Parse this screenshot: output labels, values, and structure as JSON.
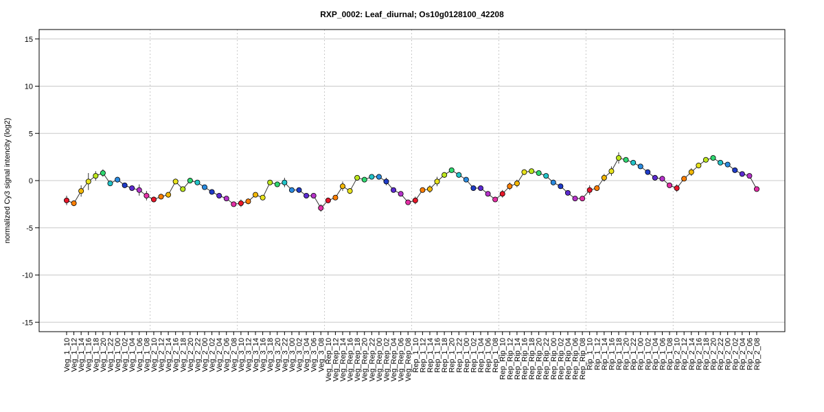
{
  "chart_data": {
    "type": "line",
    "title": "RXP_0002: Leaf_diurnal; Os10g0128100_42208",
    "xlabel": "",
    "ylabel": "normalized Cy3 signal intencity (log2)",
    "ylim": [
      -16,
      16
    ],
    "yticks": [
      -15,
      -10,
      -5,
      0,
      5,
      10,
      15
    ],
    "grid": true,
    "legend": "none",
    "categories": [
      "Veg_1_10",
      "Veg_1_12",
      "Veg_1_14",
      "Veg_1_16",
      "Veg_1_18",
      "Veg_1_20",
      "Veg_1_22",
      "Veg_1_00",
      "Veg_1_02",
      "Veg_1_04",
      "Veg_1_06",
      "Veg_1_08",
      "Veg_2_10",
      "Veg_2_12",
      "Veg_2_14",
      "Veg_2_16",
      "Veg_2_18",
      "Veg_2_20",
      "Veg_2_22",
      "Veg_2_00",
      "Veg_2_02",
      "Veg_2_04",
      "Veg_2_06",
      "Veg_2_08",
      "Veg_3_10",
      "Veg_3_12",
      "Veg_3_14",
      "Veg_3_16",
      "Veg_3_18",
      "Veg_3_20",
      "Veg_3_22",
      "Veg_3_00",
      "Veg_3_02",
      "Veg_3_04",
      "Veg_3_06",
      "Veg_3_08",
      "Veg_Rep_10",
      "Veg_Rep_12",
      "Veg_Rep_14",
      "Veg_Rep_16",
      "Veg_Rep_18",
      "Veg_Rep_20",
      "Veg_Rep_22",
      "Veg_Rep_00",
      "Veg_Rep_02",
      "Veg_Rep_04",
      "Veg_Rep_06",
      "Veg_Rep_08",
      "Rep_1_10",
      "Rep_1_12",
      "Rep_1_14",
      "Rep_1_16",
      "Rep_1_18",
      "Rep_1_20",
      "Rep_1_22",
      "Rep_1_00",
      "Rep_1_02",
      "Rep_1_04",
      "Rep_1_06",
      "Rep_1_08",
      "Rep_Rip_10",
      "Rep_Rip_12",
      "Rep_Rip_14",
      "Rep_Rip_16",
      "Rep_Rip_18",
      "Rep_Rip_20",
      "Rep_Rip_22",
      "Rep_Rip_00",
      "Rep_Rip_02",
      "Rep_Rip_04",
      "Rep_Rip_06",
      "Rep_Rip_08",
      "Rip_1_10",
      "Rip_1_12",
      "Rip_1_14",
      "Rip_1_16",
      "Rip_1_18",
      "Rip_1_20",
      "Rip_1_22",
      "Rip_1_00",
      "Rip_1_02",
      "Rip_1_04",
      "Rip_1_06",
      "Rip_1_08",
      "Rip_2_10",
      "Rip_2_12",
      "Rip_2_14",
      "Rip_2_16",
      "Rip_2_18",
      "Rip_2_20",
      "Rip_2_22",
      "Rip_2_00",
      "Rip_2_02",
      "Rip_2_04",
      "Rip_2_06",
      "Rip_2_08"
    ],
    "group_boundaries_after_index": [
      11,
      23,
      35,
      47,
      59,
      71,
      83
    ],
    "series": [
      {
        "values": [
          -2.1,
          -2.4,
          -1.1,
          -0.1,
          0.5,
          0.8,
          -0.3,
          0.1,
          -0.5,
          -0.8,
          -1.0,
          -1.6,
          -2.0,
          -1.7,
          -1.5,
          -0.1,
          -0.9,
          0.0,
          -0.2,
          -0.7,
          -1.2,
          -1.6,
          -1.9,
          -2.5,
          -2.4,
          -2.2,
          -1.5,
          -1.8,
          -0.2,
          -0.4,
          -0.2,
          -1.0,
          -1.0,
          -1.6,
          -1.6,
          -2.9,
          -2.1,
          -1.8,
          -0.6,
          -1.1,
          0.3,
          0.1,
          0.4,
          0.4,
          -0.1,
          -1.0,
          -1.4,
          -2.3,
          -2.1,
          -1.0,
          -0.9,
          -0.1,
          0.6,
          1.1,
          0.6,
          0.1,
          -0.8,
          -0.8,
          -1.4,
          -2.0,
          -1.4,
          -0.6,
          -0.3,
          0.9,
          1.0,
          0.8,
          0.5,
          -0.2,
          -0.6,
          -1.3,
          -1.9,
          -1.9,
          -1.0,
          -0.8,
          0.3,
          1.0,
          2.4,
          2.2,
          1.9,
          1.5,
          0.9,
          0.3,
          0.2,
          -0.5,
          -0.8,
          0.2,
          0.9,
          1.6,
          2.2,
          2.4,
          1.9,
          1.7,
          1.1,
          0.7,
          0.5,
          -0.9
        ],
        "errors": [
          0.5,
          0.3,
          0.6,
          0.9,
          0.5,
          0.4,
          0.2,
          0.3,
          0.2,
          0.2,
          0.6,
          0.5,
          0.3,
          0.3,
          0.3,
          0.3,
          0.2,
          0.3,
          0.2,
          0.2,
          0.2,
          0.2,
          0.2,
          0.2,
          0.4,
          0.3,
          0.2,
          0.2,
          0.2,
          0.2,
          0.5,
          0.2,
          0.2,
          0.2,
          0.2,
          0.4,
          0.3,
          0.2,
          0.5,
          0.3,
          0.2,
          0.2,
          0.2,
          0.3,
          0.4,
          0.2,
          0.2,
          0.2,
          0.4,
          0.2,
          0.4,
          0.5,
          0.3,
          0.2,
          0.3,
          0.2,
          0.2,
          0.2,
          0.2,
          0.2,
          0.4,
          0.4,
          0.4,
          0.3,
          0.2,
          0.2,
          0.2,
          0.3,
          0.2,
          0.2,
          0.2,
          0.2,
          0.5,
          0.3,
          0.4,
          0.5,
          0.6,
          0.2,
          0.2,
          0.2,
          0.2,
          0.3,
          0.3,
          0.2,
          0.4,
          0.2,
          0.4,
          0.3,
          0.2,
          0.2,
          0.2,
          0.2,
          0.2,
          0.2,
          0.2,
          0.2
        ],
        "point_colors": [
          "#e8172a",
          "#ff7f00",
          "#f2b705",
          "#e7e21c",
          "#bde61d",
          "#2fd870",
          "#22c4c9",
          "#2a8be0",
          "#1f3cc8",
          "#5b2ad0",
          "#b532c9",
          "#e42fa6",
          "#e8172a",
          "#ff7f00",
          "#f2b705",
          "#e7e21c",
          "#bde61d",
          "#2fd870",
          "#22c4c9",
          "#2a8be0",
          "#1f3cc8",
          "#5b2ad0",
          "#b532c9",
          "#e42fa6",
          "#e8172a",
          "#ff7f00",
          "#f2b705",
          "#e7e21c",
          "#bde61d",
          "#2fd870",
          "#22c4c9",
          "#2a8be0",
          "#1f3cc8",
          "#5b2ad0",
          "#b532c9",
          "#e42fa6",
          "#e8172a",
          "#ff7f00",
          "#f2b705",
          "#e7e21c",
          "#bde61d",
          "#2fd870",
          "#22c4c9",
          "#2a8be0",
          "#1f3cc8",
          "#5b2ad0",
          "#b532c9",
          "#e42fa6",
          "#e8172a",
          "#ff7f00",
          "#f2b705",
          "#e7e21c",
          "#bde61d",
          "#2fd870",
          "#22c4c9",
          "#2a8be0",
          "#1f3cc8",
          "#5b2ad0",
          "#b532c9",
          "#e42fa6",
          "#e8172a",
          "#ff7f00",
          "#f2b705",
          "#e7e21c",
          "#bde61d",
          "#2fd870",
          "#22c4c9",
          "#2a8be0",
          "#1f3cc8",
          "#5b2ad0",
          "#b532c9",
          "#e42fa6",
          "#e8172a",
          "#ff7f00",
          "#f2b705",
          "#e7e21c",
          "#bde61d",
          "#2fd870",
          "#22c4c9",
          "#2a8be0",
          "#1f3cc8",
          "#5b2ad0",
          "#b532c9",
          "#e42fa6",
          "#e8172a",
          "#ff7f00",
          "#f2b705",
          "#e7e21c",
          "#bde61d",
          "#2fd870",
          "#22c4c9",
          "#2a8be0",
          "#1f3cc8",
          "#5b2ad0",
          "#b532c9",
          "#e42fa6"
        ]
      }
    ]
  }
}
